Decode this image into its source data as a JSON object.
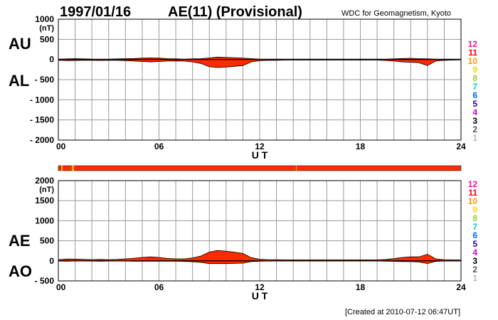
{
  "header": {
    "date": "1997/01/16",
    "title": "AE(11) (Provisional)",
    "source": "WDC for Geomagnetism, Kyoto"
  },
  "footer": {
    "created": "[Created at 2010-07-12 06:47UT]"
  },
  "colors": {
    "fill": "#ff2a00",
    "bar": "#ff2a00",
    "bar_gap": "#ffbf00",
    "grid": "#9a9a9a",
    "counts": [
      "#ff1493",
      "#ff0000",
      "#ff9900",
      "#ffd700",
      "#9acd32",
      "#00d0d0",
      "#0066ff",
      "#2200aa",
      "#cc00cc",
      "#000000",
      "#555555",
      "#bbbbbb"
    ]
  },
  "chart_data": [
    {
      "type": "area",
      "panel": "AU/AL",
      "labels": [
        "AU",
        "AL"
      ],
      "unit": "(nT)",
      "xlabel": "U T",
      "x_ticks": [
        "00",
        "06",
        "12",
        "18",
        "24"
      ],
      "x_range": [
        0,
        24
      ],
      "ylim": [
        -2000,
        1000
      ],
      "y_ticks": [
        1000,
        500,
        0,
        -500,
        -1000,
        -1500,
        -2000
      ],
      "y_tick_labels": [
        "1000",
        "500",
        "0",
        "- 500",
        "- 1000",
        "- 1500",
        "- 2000"
      ],
      "grid": true,
      "station_counts": [
        "12",
        "11",
        "10",
        "9",
        "8",
        "7",
        "6",
        "5",
        "4",
        "3",
        "2",
        "1"
      ],
      "series": [
        {
          "name": "AU",
          "x": [
            0,
            0.5,
            1,
            1.5,
            2,
            2.5,
            3,
            3.5,
            4,
            4.5,
            5,
            5.5,
            6,
            6.5,
            7,
            7.5,
            8,
            8.5,
            9,
            9.5,
            10,
            10.5,
            11,
            11.5,
            12,
            12.5,
            13,
            13.5,
            14,
            14.5,
            15,
            15.5,
            16,
            16.5,
            17,
            17.5,
            18,
            18.5,
            19,
            19.5,
            20,
            20.5,
            21,
            21.5,
            22,
            22.5,
            23,
            23.5,
            24
          ],
          "values": [
            10,
            15,
            20,
            15,
            10,
            10,
            10,
            15,
            20,
            25,
            35,
            40,
            35,
            20,
            15,
            10,
            15,
            20,
            40,
            60,
            50,
            45,
            35,
            20,
            10,
            10,
            10,
            10,
            10,
            10,
            10,
            10,
            10,
            10,
            10,
            10,
            10,
            10,
            10,
            10,
            15,
            25,
            30,
            20,
            15,
            10,
            10,
            10,
            10
          ]
        },
        {
          "name": "AL",
          "x": [
            0,
            0.5,
            1,
            1.5,
            2,
            2.5,
            3,
            3.5,
            4,
            4.5,
            5,
            5.5,
            6,
            6.5,
            7,
            7.5,
            8,
            8.5,
            9,
            9.5,
            10,
            10.5,
            11,
            11.5,
            12,
            12.5,
            13,
            13.5,
            14,
            14.5,
            15,
            15.5,
            16,
            16.5,
            17,
            17.5,
            18,
            18.5,
            19,
            19.5,
            20,
            20.5,
            21,
            21.5,
            22,
            22.5,
            23,
            23.5,
            24
          ],
          "values": [
            -20,
            -30,
            -25,
            -20,
            -20,
            -25,
            -20,
            -20,
            -30,
            -40,
            -50,
            -60,
            -50,
            -40,
            -35,
            -40,
            -60,
            -100,
            -180,
            -200,
            -190,
            -170,
            -150,
            -60,
            -30,
            -20,
            -20,
            -15,
            -15,
            -15,
            -15,
            -15,
            -15,
            -15,
            -15,
            -15,
            -15,
            -15,
            -15,
            -25,
            -40,
            -60,
            -70,
            -80,
            -150,
            -40,
            -20,
            -15,
            -10
          ]
        }
      ]
    },
    {
      "type": "area",
      "panel": "AE/AO",
      "labels": [
        "AE",
        "AO"
      ],
      "unit": "(nT)",
      "xlabel": "U T",
      "x_ticks": [
        "00",
        "06",
        "12",
        "18",
        "24"
      ],
      "x_range": [
        0,
        24
      ],
      "ylim": [
        -500,
        2000
      ],
      "y_ticks": [
        2000,
        1500,
        1000,
        500,
        0,
        -500
      ],
      "y_tick_labels": [
        "2000",
        "1500",
        "1000",
        "500",
        "0",
        "- 500"
      ],
      "grid": true,
      "station_counts": [
        "12",
        "11",
        "10",
        "9",
        "8",
        "7",
        "6",
        "5",
        "4",
        "3",
        "2",
        "1"
      ],
      "series": [
        {
          "name": "AE",
          "x": [
            0,
            0.5,
            1,
            1.5,
            2,
            2.5,
            3,
            3.5,
            4,
            4.5,
            5,
            5.5,
            6,
            6.5,
            7,
            7.5,
            8,
            8.5,
            9,
            9.5,
            10,
            10.5,
            11,
            11.5,
            12,
            12.5,
            13,
            13.5,
            14,
            14.5,
            15,
            15.5,
            16,
            16.5,
            17,
            17.5,
            18,
            18.5,
            19,
            19.5,
            20,
            20.5,
            21,
            21.5,
            22,
            22.5,
            23,
            23.5,
            24
          ],
          "values": [
            30,
            45,
            45,
            35,
            30,
            35,
            30,
            35,
            50,
            65,
            85,
            100,
            85,
            60,
            50,
            50,
            75,
            120,
            220,
            260,
            240,
            215,
            185,
            80,
            40,
            30,
            30,
            25,
            25,
            25,
            25,
            25,
            25,
            25,
            25,
            25,
            25,
            25,
            25,
            35,
            55,
            85,
            100,
            100,
            165,
            50,
            30,
            25,
            20
          ]
        },
        {
          "name": "AO",
          "x": [
            0,
            0.5,
            1,
            1.5,
            2,
            2.5,
            3,
            3.5,
            4,
            4.5,
            5,
            5.5,
            6,
            6.5,
            7,
            7.5,
            8,
            8.5,
            9,
            9.5,
            10,
            10.5,
            11,
            11.5,
            12,
            12.5,
            13,
            13.5,
            14,
            14.5,
            15,
            15.5,
            16,
            16.5,
            17,
            17.5,
            18,
            18.5,
            19,
            19.5,
            20,
            20.5,
            21,
            21.5,
            22,
            22.5,
            23,
            23.5,
            24
          ],
          "values": [
            -5,
            -8,
            -3,
            -3,
            -5,
            -8,
            -5,
            -3,
            -5,
            -8,
            -8,
            -10,
            -8,
            -10,
            -10,
            -15,
            -23,
            -40,
            -70,
            -70,
            -70,
            -63,
            -58,
            -20,
            -10,
            -5,
            -5,
            -3,
            -3,
            -3,
            -3,
            -3,
            -3,
            -3,
            -3,
            -3,
            -3,
            -3,
            -3,
            -8,
            -13,
            -18,
            -20,
            -30,
            -68,
            -15,
            -5,
            -3,
            0
          ]
        }
      ]
    }
  ]
}
